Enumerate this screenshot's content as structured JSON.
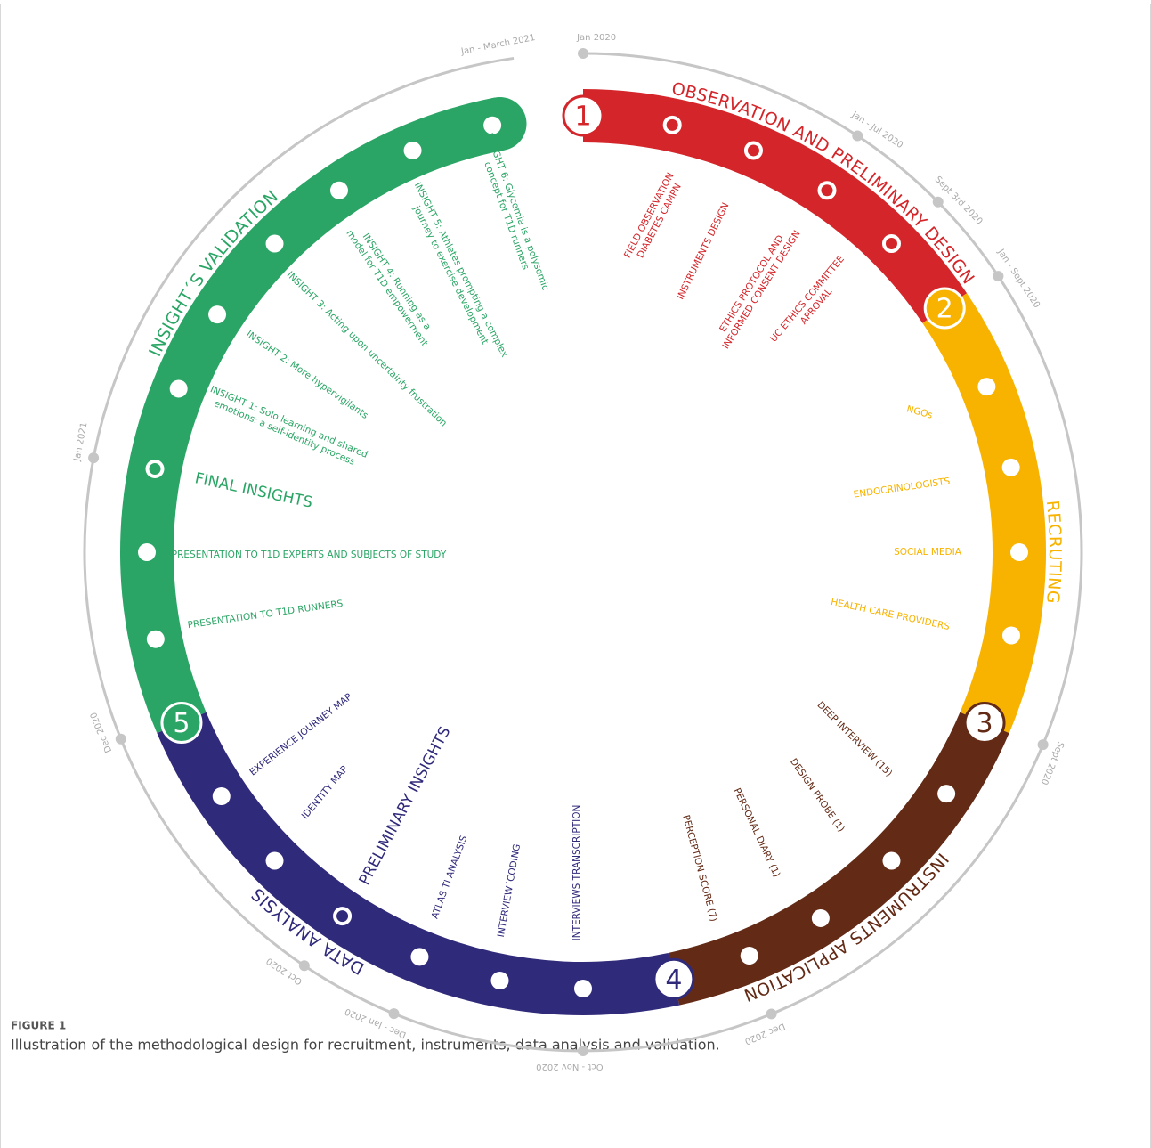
{
  "dates": [
    {
      "label": "Jan 2020"
    },
    {
      "label": "Jan - Jul 2020"
    },
    {
      "label": "Sept 3rd 2020"
    },
    {
      "label": "Jan - Sept 2020"
    },
    {
      "label": "Sept 2020"
    },
    {
      "label": "Dec 2020"
    },
    {
      "label": "Oct - Nov 2020"
    },
    {
      "label": "Dec - Jan 2020"
    },
    {
      "label": "Oct 2020"
    },
    {
      "label": "Dec 2020"
    },
    {
      "label": "Jan 2021"
    },
    {
      "label": "Jan - March 2021"
    }
  ],
  "phases": [
    {
      "number": 1,
      "title": "OBSERVATION AND PRELIMINARY DESIGN",
      "color": "#d4262a",
      "items": [
        [
          "FIELD OBSERVATION",
          "DIABETES CAMPN"
        ],
        [
          "INSTRUMENTS DESIGN"
        ],
        [
          "ETHICS PROTOCOL AND",
          "INFORMED CONSENT DESIGN"
        ],
        [
          "UC ETHICS COMMITTEE",
          "APROVAL"
        ]
      ]
    },
    {
      "number": 2,
      "title": "RECRUTING",
      "color": "#f8b300",
      "items": [
        [
          "NGOs"
        ],
        [
          "ENDOCRINOLOGISTS"
        ],
        [
          "SOCIAL MEDIA"
        ],
        [
          "HEALTH CARE PROVIDERS"
        ]
      ]
    },
    {
      "number": 3,
      "title": "INSTRUMENTS APPLICATION",
      "color": "#632a16",
      "items": [
        [
          "DEEP INTERVIEW (15)"
        ],
        [
          "DESIGN PROBE (1)"
        ],
        [
          "PERSONAL DIARY (1)"
        ],
        [
          "PERCEPTION SCORE (7)"
        ]
      ]
    },
    {
      "number": 4,
      "title": "DATA ANALYSIS",
      "color": "#302a7a",
      "heading": "PRELIMINARY INSIGHTS",
      "items": [
        [
          "INTERVIEWS TRANSCRIPTION"
        ],
        [
          "INTERVIEW´CODING"
        ],
        [
          "ATLAS TI ANALYSIS"
        ],
        [
          "IDENTITY MAP"
        ],
        [
          "EXPERIENCE JOURNEY MAP"
        ]
      ]
    },
    {
      "number": 5,
      "title": "INSIGHT´S VALIDATION",
      "color": "#2aa565",
      "heading": "FINAL INSIGHTS",
      "items": [
        [
          "PRESENTATION TO T1D RUNNERS"
        ],
        [
          "PRESENTATION TO T1D EXPERTS AND SUBJECTS OF STUDY"
        ],
        [
          "INSIGHT 1: Solo learning and shared",
          "emotions: a self-identity process"
        ],
        [
          "INSIGHT 2: More hypervigilants"
        ],
        [
          "INSIGHT 3: Acting upon uncertainty frustration"
        ],
        [
          "INSIGHT 4: Running as a",
          "model for T1D empowerment"
        ],
        [
          "INSIGHT 5: Athletes prompting a complex",
          "journey to exercise development"
        ],
        [
          "INSIGHT 6: Glycemia is a polysemic",
          "concept for T1D runners"
        ]
      ]
    }
  ],
  "caption": {
    "label": "FIGURE 1",
    "text": "Illustration of the methodological design for recruitment, instruments, data analysis and validation."
  }
}
